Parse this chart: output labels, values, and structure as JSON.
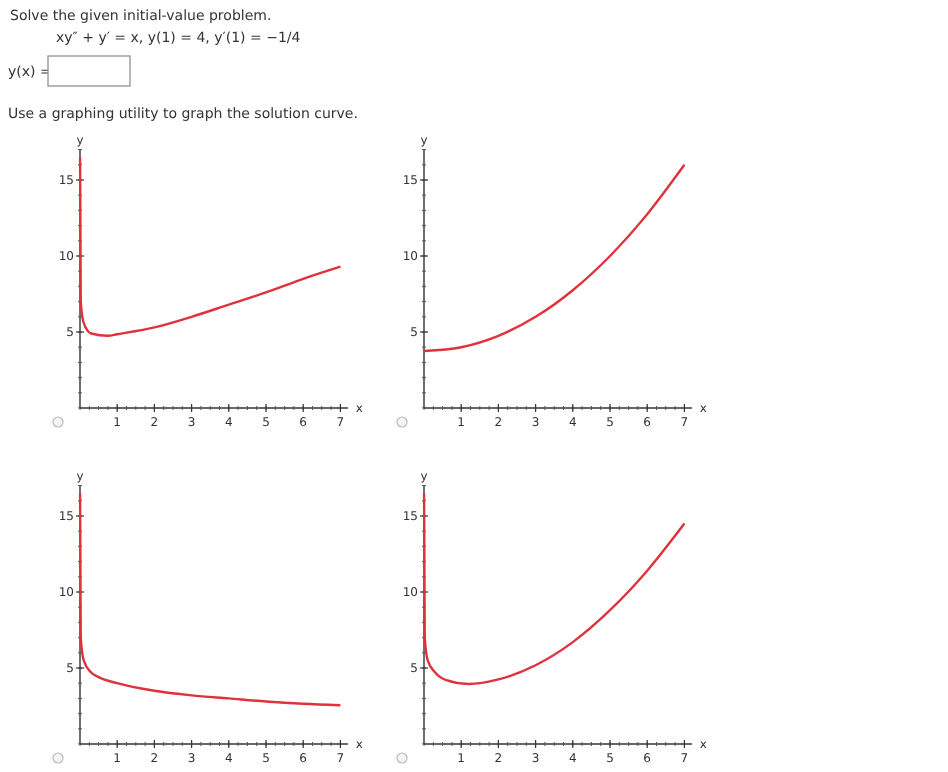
{
  "chart_data": [
    {
      "type": "other",
      "title": "Solve the given initial-value problem.",
      "annotations": [
        "xy″ + y′ = x,  y(1) = 4,  y′(1) = −1/4",
        "y(x) =",
        "Use a graphing utility to graph the solution curve."
      ]
    },
    {
      "type": "line",
      "xlabel": "x",
      "ylabel": "y",
      "xlim": [
        0,
        7.2
      ],
      "ylim": [
        0,
        17
      ],
      "xticks": [
        1,
        2,
        3,
        4,
        5,
        6,
        7
      ],
      "yticks": [
        5,
        10,
        15
      ],
      "series": [
        {
          "color": "#e0323c",
          "x": [
            0.002,
            0.02,
            0.1,
            0.3,
            0.75,
            1,
            2,
            3,
            4,
            5,
            6,
            7
          ],
          "values": [
            16.5,
            7,
            5.6,
            4.9,
            4.75,
            4.85,
            5.3,
            6,
            6.8,
            7.6,
            8.5,
            9.3
          ]
        }
      ]
    },
    {
      "type": "line",
      "xlabel": "x",
      "ylabel": "y",
      "xlim": [
        0,
        7.2
      ],
      "ylim": [
        0,
        17
      ],
      "xticks": [
        1,
        2,
        3,
        4,
        5,
        6,
        7
      ],
      "yticks": [
        5,
        10,
        15
      ],
      "series": [
        {
          "color": "#e0323c",
          "x": [
            0,
            1,
            2,
            3,
            4,
            5,
            6,
            7
          ],
          "values": [
            3.75,
            4,
            4.75,
            6,
            7.75,
            10,
            12.75,
            16
          ]
        }
      ]
    },
    {
      "type": "line",
      "xlabel": "x",
      "ylabel": "y",
      "xlim": [
        0,
        7.2
      ],
      "ylim": [
        0,
        17
      ],
      "xticks": [
        1,
        2,
        3,
        4,
        5,
        6,
        7
      ],
      "yticks": [
        5,
        10,
        15
      ],
      "series": [
        {
          "color": "#e0323c",
          "x": [
            0.002,
            0.02,
            0.1,
            0.3,
            0.5,
            1,
            2,
            3,
            4,
            5,
            6,
            7
          ],
          "values": [
            16.5,
            7,
            5.5,
            4.7,
            4.4,
            4,
            3.5,
            3.2,
            3,
            2.8,
            2.65,
            2.55
          ]
        }
      ]
    },
    {
      "type": "line",
      "xlabel": "x",
      "ylabel": "y",
      "xlim": [
        0,
        7.2
      ],
      "ylim": [
        0,
        17
      ],
      "xticks": [
        1,
        2,
        3,
        4,
        5,
        6,
        7
      ],
      "yticks": [
        5,
        10,
        15
      ],
      "series": [
        {
          "color": "#e0323c",
          "x": [
            0.002,
            0.02,
            0.1,
            0.3,
            0.6,
            1.2,
            2,
            3,
            4,
            5,
            6,
            7
          ],
          "values": [
            16.5,
            7,
            5.5,
            4.7,
            4.2,
            3.95,
            4.25,
            5.18,
            6.7,
            8.8,
            11.4,
            14.5
          ]
        }
      ]
    }
  ]
}
